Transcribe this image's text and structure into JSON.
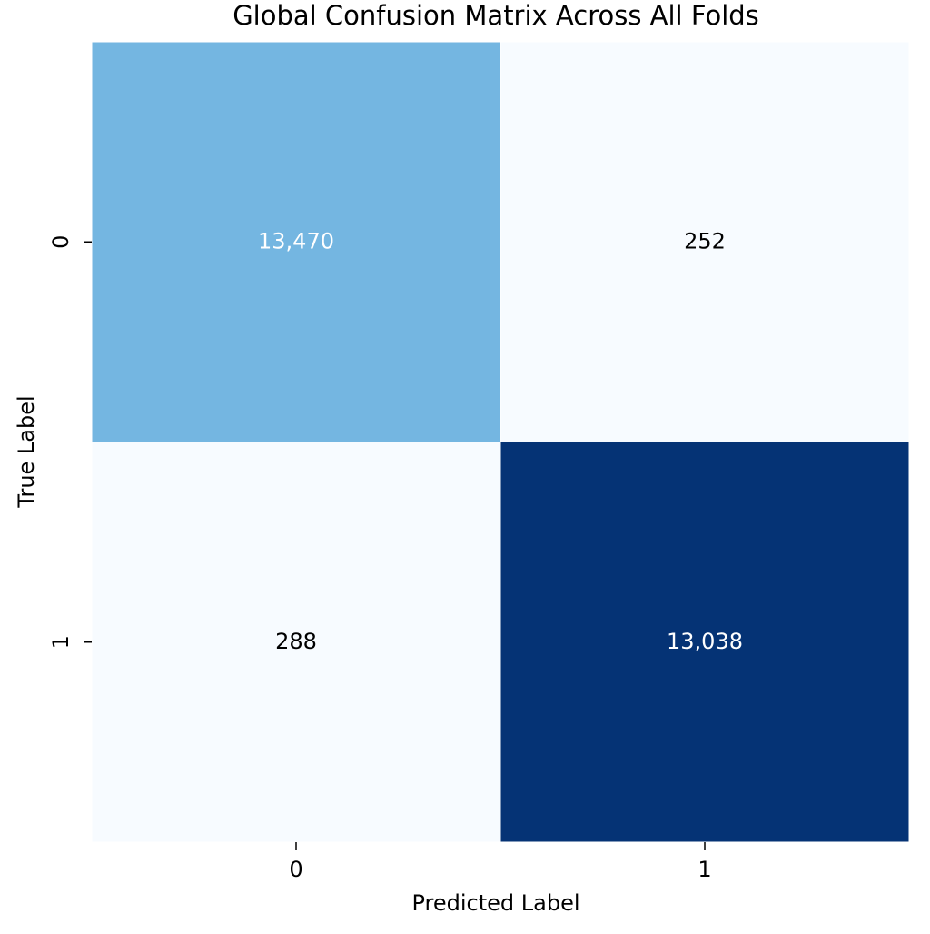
{
  "chart_data": {
    "type": "heatmap",
    "title": "Global Confusion Matrix Across All Folds",
    "x_label": "Predicted Label",
    "y_label": "True Label",
    "x_categories": [
      "0",
      "1"
    ],
    "y_categories": [
      "0",
      "1"
    ],
    "values": [
      [
        13470,
        252
      ],
      [
        288,
        13038
      ]
    ],
    "value_labels": [
      [
        "13,470",
        "252"
      ],
      [
        "288",
        "13,038"
      ]
    ],
    "colors": [
      [
        "#74b6e1",
        "#f7fbff"
      ],
      [
        "#f7fbff",
        "#053375"
      ]
    ],
    "text_colors": [
      [
        "#ffffff",
        "#000000"
      ],
      [
        "#000000",
        "#ffffff"
      ]
    ]
  }
}
